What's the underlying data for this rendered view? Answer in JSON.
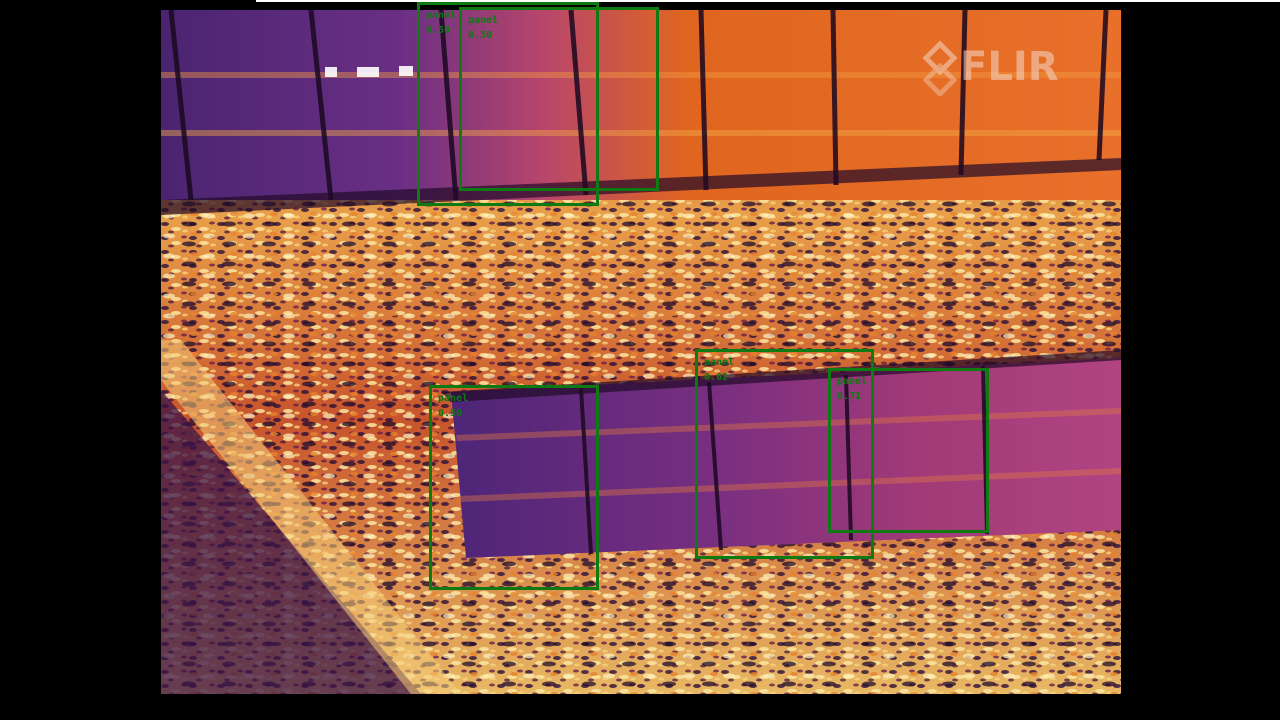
{
  "image": {
    "camera_brand_logo": "FLIR",
    "palette": {
      "panel_dark": "#5a2a86",
      "panel_warm": "#e0661f",
      "ground_hot": "#f6d27a",
      "ground_mid": "#d35a2a",
      "ground_cold": "#2a0f3a",
      "box_color": "#0d7a12"
    }
  },
  "detections": [
    {
      "label": "panel",
      "score": "0.50"
    },
    {
      "label": "panel",
      "score": "0.50"
    },
    {
      "label": "panel",
      "score": "0.50"
    },
    {
      "label": "panel",
      "score": "0.62"
    },
    {
      "label": "panel",
      "score": "0.71"
    }
  ]
}
